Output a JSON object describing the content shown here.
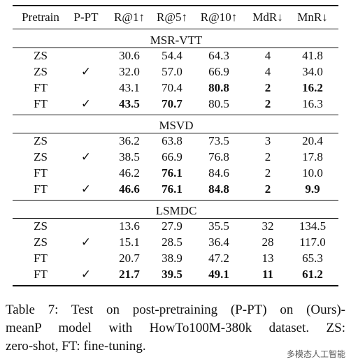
{
  "table": {
    "header": [
      "Pretrain",
      "P-PT",
      "R@1↑",
      "R@5↑",
      "R@10↑",
      "MdR↓",
      "MnR↓"
    ],
    "sections": [
      {
        "title": "MSR-VTT",
        "rows": [
          [
            "ZS",
            null,
            "30.6",
            "54.4",
            "64.3",
            "4",
            "41.8"
          ],
          [
            "ZS",
            "✓",
            "32.0",
            "57.0",
            "66.9",
            "4",
            "34.0"
          ],
          [
            "FT",
            null,
            "43.1",
            "70.4",
            "80.8",
            "2",
            "16.2"
          ],
          [
            "FT",
            "✓",
            "43.5",
            "70.7",
            "80.5",
            "2",
            "16.3"
          ]
        ],
        "bold": [
          [],
          [],
          [
            4,
            5,
            6
          ],
          [
            2,
            3,
            5
          ]
        ]
      },
      {
        "title": "MSVD",
        "rows": [
          [
            "ZS",
            null,
            "36.2",
            "63.8",
            "73.5",
            "3",
            "20.4"
          ],
          [
            "ZS",
            "✓",
            "38.5",
            "66.9",
            "76.8",
            "2",
            "17.8"
          ],
          [
            "FT",
            null,
            "46.2",
            "76.1",
            "84.6",
            "2",
            "10.0"
          ],
          [
            "FT",
            "✓",
            "46.6",
            "76.1",
            "84.8",
            "2",
            "9.9"
          ]
        ],
        "bold": [
          [],
          [],
          [
            3
          ],
          [
            2,
            3,
            4,
            5,
            6
          ]
        ]
      },
      {
        "title": "LSMDC",
        "rows": [
          [
            "ZS",
            null,
            "13.6",
            "27.9",
            "35.5",
            "32",
            "134.5"
          ],
          [
            "ZS",
            "✓",
            "15.1",
            "28.5",
            "36.4",
            "28",
            "117.0"
          ],
          [
            "FT",
            null,
            "20.7",
            "38.9",
            "47.2",
            "13",
            "65.3"
          ],
          [
            "FT",
            "✓",
            "21.7",
            "39.5",
            "49.1",
            "11",
            "61.2"
          ]
        ],
        "bold": [
          [],
          [],
          [],
          [
            2,
            3,
            4,
            5,
            6
          ]
        ]
      }
    ]
  },
  "caption": [
    "Table 7:  Test on post-pretraining (P-PT) on (Ours)-",
    "meanP model with HowTo100M-380k dataset.  ZS:",
    "zero-shot, FT: fine-tuning."
  ],
  "watermark": "多模态人工智能"
}
